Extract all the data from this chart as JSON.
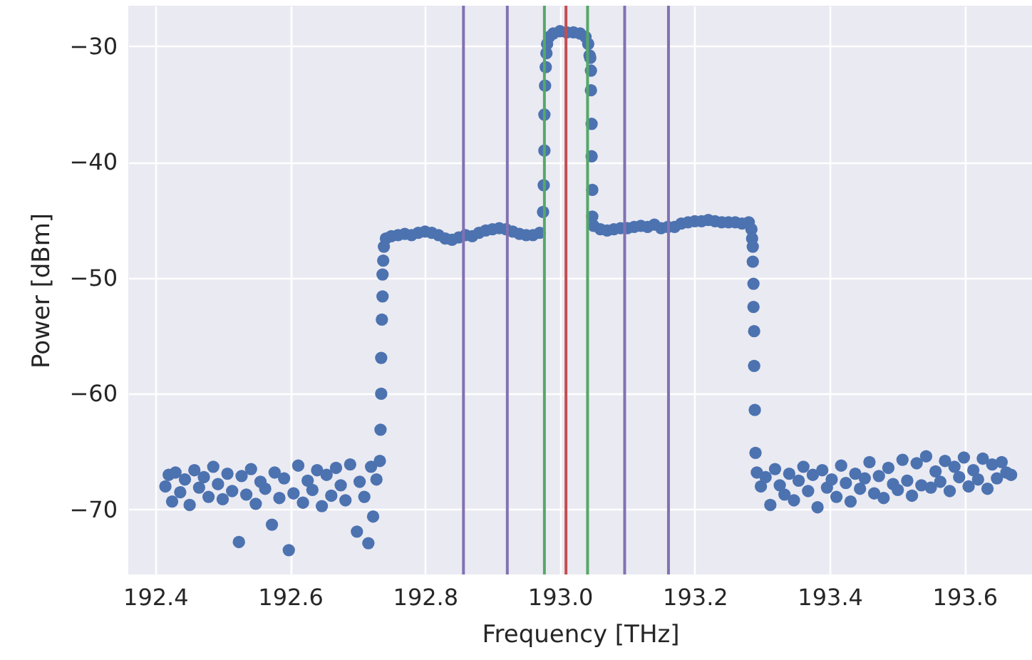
{
  "chart_data": {
    "type": "scatter",
    "xlabel": "Frequency [THz]",
    "ylabel": "Power [dBm]",
    "xlim": [
      192.36,
      193.7
    ],
    "ylim": [
      -75.6,
      -26.5
    ],
    "xticks": [
      192.4,
      192.6,
      192.8,
      {
        "value": 193,
        "label": "193.0"
      },
      193.2,
      193.4,
      193.6
    ],
    "yticks": [
      -70,
      -60,
      -50,
      -40,
      -30
    ],
    "grid": true,
    "marker": "circle",
    "series": [
      {
        "color": "#4c72b0",
        "x": [
          192.415,
          192.42,
          192.425,
          192.43,
          192.437,
          192.444,
          192.451,
          192.458,
          192.465,
          192.472,
          192.479,
          192.486,
          192.493,
          192.5,
          192.507,
          192.514,
          192.524,
          192.528,
          192.535,
          192.542,
          192.549,
          192.556,
          192.563,
          192.573,
          192.577,
          192.584,
          192.591,
          192.598,
          192.605,
          192.612,
          192.619,
          192.626,
          192.633,
          192.64,
          192.647,
          192.654,
          192.661,
          192.668,
          192.675,
          192.682,
          192.689,
          192.699,
          192.703,
          192.71,
          192.716,
          192.72,
          192.723,
          192.728,
          192.733,
          192.734,
          192.735,
          192.735,
          192.736,
          192.737,
          192.737,
          192.738,
          192.739,
          192.742,
          192.75,
          192.76,
          192.77,
          192.78,
          192.79,
          192.8,
          192.81,
          192.82,
          192.83,
          192.84,
          192.85,
          192.86,
          192.87,
          192.88,
          192.89,
          192.9,
          192.91,
          192.92,
          192.93,
          192.94,
          192.95,
          192.96,
          192.97,
          192.975,
          192.976,
          192.977,
          192.977,
          192.978,
          192.979,
          192.98,
          192.981,
          192.984,
          192.99,
          193.0,
          193.01,
          193.02,
          193.03,
          193.038,
          193.042,
          193.044,
          193.045,
          193.046,
          193.046,
          193.047,
          193.047,
          193.048,
          193.048,
          193.05,
          193.06,
          193.07,
          193.08,
          193.09,
          193.1,
          193.11,
          193.12,
          193.13,
          193.14,
          193.15,
          193.16,
          193.17,
          193.18,
          193.19,
          193.2,
          193.21,
          193.22,
          193.23,
          193.24,
          193.25,
          193.26,
          193.27,
          193.28,
          193.284,
          193.285,
          193.286,
          193.286,
          193.287,
          193.287,
          193.288,
          193.288,
          193.289,
          193.29,
          193.292,
          193.298,
          193.305,
          193.312,
          193.319,
          193.326,
          193.333,
          193.34,
          193.347,
          193.354,
          193.361,
          193.368,
          193.375,
          193.382,
          193.389,
          193.396,
          193.403,
          193.41,
          193.417,
          193.424,
          193.431,
          193.438,
          193.445,
          193.452,
          193.459,
          193.466,
          193.473,
          193.48,
          193.487,
          193.494,
          193.501,
          193.508,
          193.515,
          193.522,
          193.529,
          193.536,
          193.543,
          193.55,
          193.557,
          193.564,
          193.571,
          193.578,
          193.585,
          193.592,
          193.599,
          193.606,
          193.613,
          193.62,
          193.627,
          193.634,
          193.641,
          193.648,
          193.655,
          193.662,
          193.669
        ],
        "values": [
          -68.0,
          -67.0,
          -69.3,
          -66.8,
          -68.5,
          -67.4,
          -69.6,
          -66.6,
          -68.1,
          -67.2,
          -68.9,
          -66.3,
          -67.8,
          -69.1,
          -66.9,
          -68.4,
          -72.8,
          -67.1,
          -68.7,
          -66.5,
          -69.5,
          -67.6,
          -68.2,
          -71.3,
          -66.8,
          -69.0,
          -67.3,
          -73.5,
          -68.6,
          -66.2,
          -69.4,
          -67.5,
          -68.3,
          -66.6,
          -69.7,
          -67.0,
          -68.8,
          -66.4,
          -67.9,
          -69.2,
          -66.1,
          -71.9,
          -67.6,
          -68.9,
          -72.9,
          -66.3,
          -70.6,
          -67.4,
          -65.8,
          -63.1,
          -60.0,
          -56.9,
          -53.6,
          -51.6,
          -49.7,
          -48.5,
          -47.3,
          -46.6,
          -46.4,
          -46.3,
          -46.2,
          -46.3,
          -46.1,
          -46.0,
          -46.1,
          -46.3,
          -46.6,
          -46.7,
          -46.5,
          -46.3,
          -46.4,
          -46.1,
          -45.9,
          -45.8,
          -45.7,
          -45.8,
          -46.0,
          -46.2,
          -46.3,
          -46.3,
          -46.1,
          -44.3,
          -42.0,
          -39.0,
          -35.9,
          -33.4,
          -31.8,
          -30.6,
          -29.8,
          -29.2,
          -28.9,
          -28.7,
          -28.8,
          -28.8,
          -28.9,
          -29.2,
          -29.8,
          -30.8,
          -31.0,
          -32.1,
          -33.8,
          -36.7,
          -39.5,
          -42.4,
          -44.7,
          -45.5,
          -45.8,
          -45.9,
          -45.8,
          -45.7,
          -45.7,
          -45.6,
          -45.5,
          -45.6,
          -45.4,
          -45.7,
          -45.6,
          -45.6,
          -45.3,
          -45.2,
          -45.1,
          -45.1,
          -45.0,
          -45.1,
          -45.2,
          -45.2,
          -45.2,
          -45.3,
          -45.2,
          -45.8,
          -46.6,
          -47.3,
          -48.6,
          -50.5,
          -52.5,
          -54.6,
          -57.6,
          -61.4,
          -65.1,
          -66.8,
          -68.0,
          -67.2,
          -69.6,
          -66.5,
          -67.9,
          -68.7,
          -66.9,
          -69.2,
          -67.5,
          -66.3,
          -68.4,
          -67.0,
          -69.8,
          -66.6,
          -68.1,
          -67.4,
          -68.9,
          -66.2,
          -67.7,
          -69.3,
          -66.9,
          -68.2,
          -67.3,
          -65.9,
          -68.6,
          -67.1,
          -69.0,
          -66.4,
          -67.8,
          -68.3,
          -65.7,
          -67.5,
          -68.8,
          -66.0,
          -67.9,
          -65.4,
          -68.1,
          -66.7,
          -67.6,
          -65.8,
          -68.4,
          -66.3,
          -67.2,
          -65.5,
          -68.0,
          -66.6,
          -67.4,
          -65.6,
          -68.2,
          -66.1,
          -67.3,
          -65.9,
          -66.8,
          -67.0
        ]
      }
    ],
    "ref_lines": [
      {
        "axis": "x",
        "value": 192.857,
        "color": "#8172b3"
      },
      {
        "axis": "x",
        "value": 192.922,
        "color": "#8172b3"
      },
      {
        "axis": "x",
        "value": 192.977,
        "color": "#55a868"
      },
      {
        "axis": "x",
        "value": 193.009,
        "color": "#c44e52"
      },
      {
        "axis": "x",
        "value": 193.041,
        "color": "#55a868"
      },
      {
        "axis": "x",
        "value": 193.096,
        "color": "#8172b3"
      },
      {
        "axis": "x",
        "value": 193.161,
        "color": "#8172b3"
      }
    ]
  }
}
